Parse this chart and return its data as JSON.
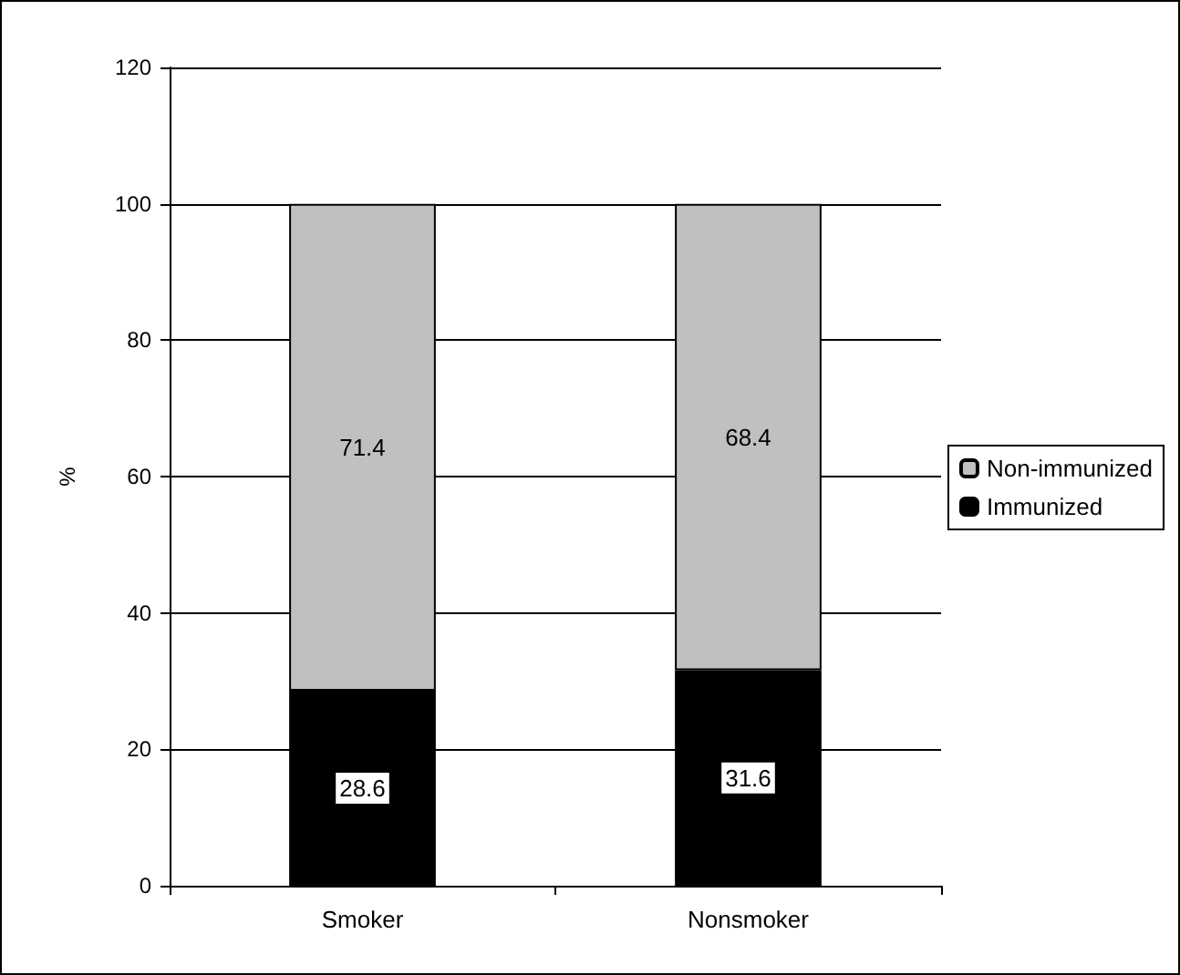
{
  "chart_data": {
    "type": "bar",
    "ylabel": "%",
    "categories": [
      "Smoker",
      "Nonsmoker"
    ],
    "series": [
      {
        "name": "Immunized",
        "color": "#000000",
        "values": [
          28.6,
          31.6
        ]
      },
      {
        "name": "Non-immunized",
        "color": "#c0c0c0",
        "values": [
          71.4,
          68.4
        ]
      }
    ],
    "stacked": true,
    "ylim": [
      0,
      120
    ],
    "yticks": [
      0,
      20,
      40,
      60,
      80,
      100,
      120
    ],
    "grid": "y",
    "legend": "right",
    "data_labels": true
  }
}
